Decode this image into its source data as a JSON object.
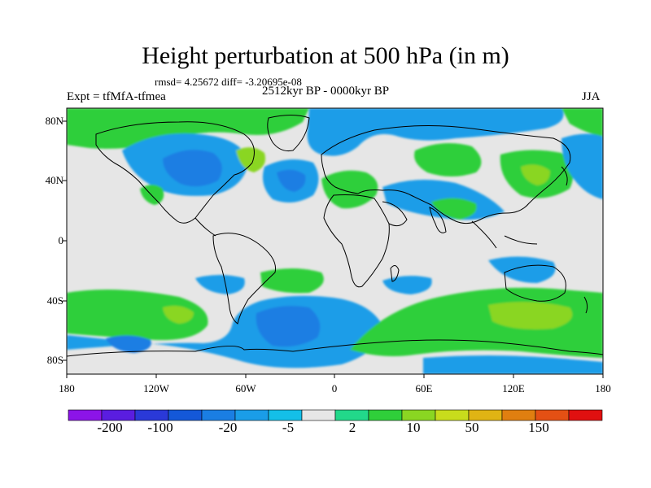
{
  "map": {
    "title": "Height perturbation at 500 hPa (in m)",
    "stats_line": "rmsd= 4.25672 diff= -3.20695e-08",
    "experiment_label": "Expt = tfMfA-tfmea",
    "period_label": "2512kyr BP - 0000kyr BP",
    "season_label": "JJA",
    "lat_ticks": [
      "80N",
      "40N",
      "0",
      "40S",
      "80S"
    ],
    "lon_ticks": [
      "180",
      "120W",
      "60W",
      "0",
      "60E",
      "120E",
      "180"
    ],
    "projection": "cylindrical equidistant",
    "field": "500 hPa geopotential height anomaly (m)"
  },
  "colorbar": {
    "labels": [
      "-200",
      "-100",
      "-20",
      "-5",
      "2",
      "10",
      "50",
      "150"
    ],
    "colors": [
      "#8c14e8",
      "#5a1de0",
      "#2a39d8",
      "#1458d8",
      "#1a7ee3",
      "#1a9de8",
      "#14bfe8",
      "#e6e6e6",
      "#22d88a",
      "#2fcf3a",
      "#8ad622",
      "#c8dc1c",
      "#e0b414",
      "#e07f10",
      "#e45014",
      "#e01010"
    ]
  },
  "palette": {
    "neg_strong": "#1458d8",
    "neg_mid": "#1a7ee3",
    "neg_weak": "#14bfe8",
    "neutral": "#e6e6e6",
    "pos_weak": "#22d88a",
    "pos_mid": "#2fcf3a",
    "pos_strong": "#8ad622",
    "coast": "#000000"
  }
}
